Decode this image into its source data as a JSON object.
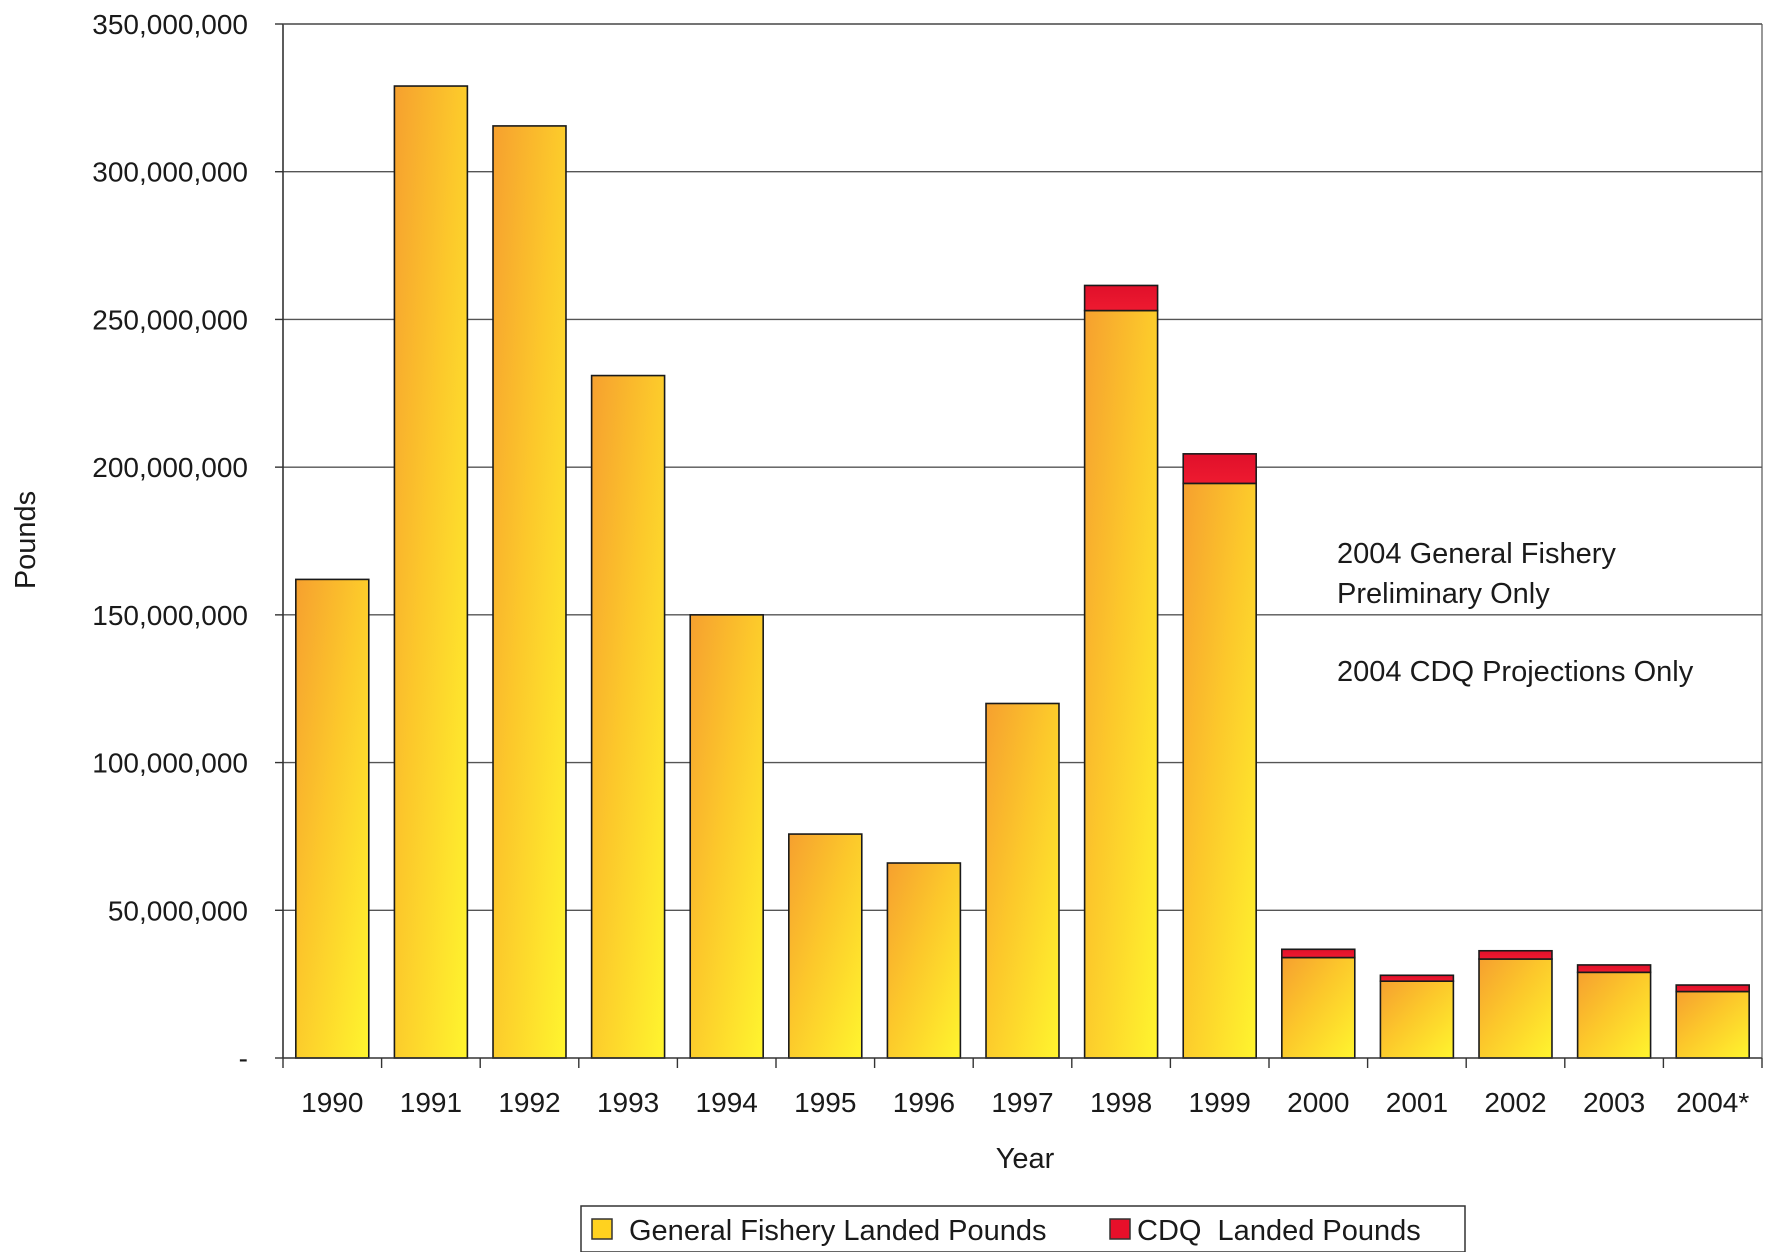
{
  "chart_data": {
    "type": "bar",
    "stacked": true,
    "title": "",
    "xlabel": "Year",
    "ylabel": "Pounds",
    "ylim": [
      0,
      350000000
    ],
    "ytick_values": [
      0,
      50000000,
      100000000,
      150000000,
      200000000,
      250000000,
      300000000,
      350000000
    ],
    "ytick_labels": [
      "-",
      "50,000,000",
      "100,000,000",
      "150,000,000",
      "200,000,000",
      "250,000,000",
      "300,000,000",
      "350,000,000"
    ],
    "grid": true,
    "legend_position": "bottom",
    "categories": [
      "1990",
      "1991",
      "1992",
      "1993",
      "1994",
      "1995",
      "1996",
      "1997",
      "1998",
      "1999",
      "2000",
      "2001",
      "2002",
      "2003",
      "2004*"
    ],
    "series": [
      {
        "name": "General Fishery Landed Pounds",
        "color": "#ffd21f",
        "values": [
          162000000,
          329000000,
          315500000,
          231000000,
          150000000,
          75800000,
          66000000,
          120000000,
          253000000,
          194500000,
          34000000,
          26000000,
          33500000,
          29000000,
          22500000
        ]
      },
      {
        "name": "CDQ  Landed Pounds",
        "color": "#e8102a",
        "values": [
          0,
          0,
          0,
          0,
          0,
          0,
          0,
          0,
          8500000,
          10000000,
          2800000,
          2000000,
          2800000,
          2500000,
          2200000
        ]
      }
    ],
    "annotations": [
      "2004 General Fishery",
      "Preliminary Only",
      "2004 CDQ Projections Only"
    ]
  }
}
